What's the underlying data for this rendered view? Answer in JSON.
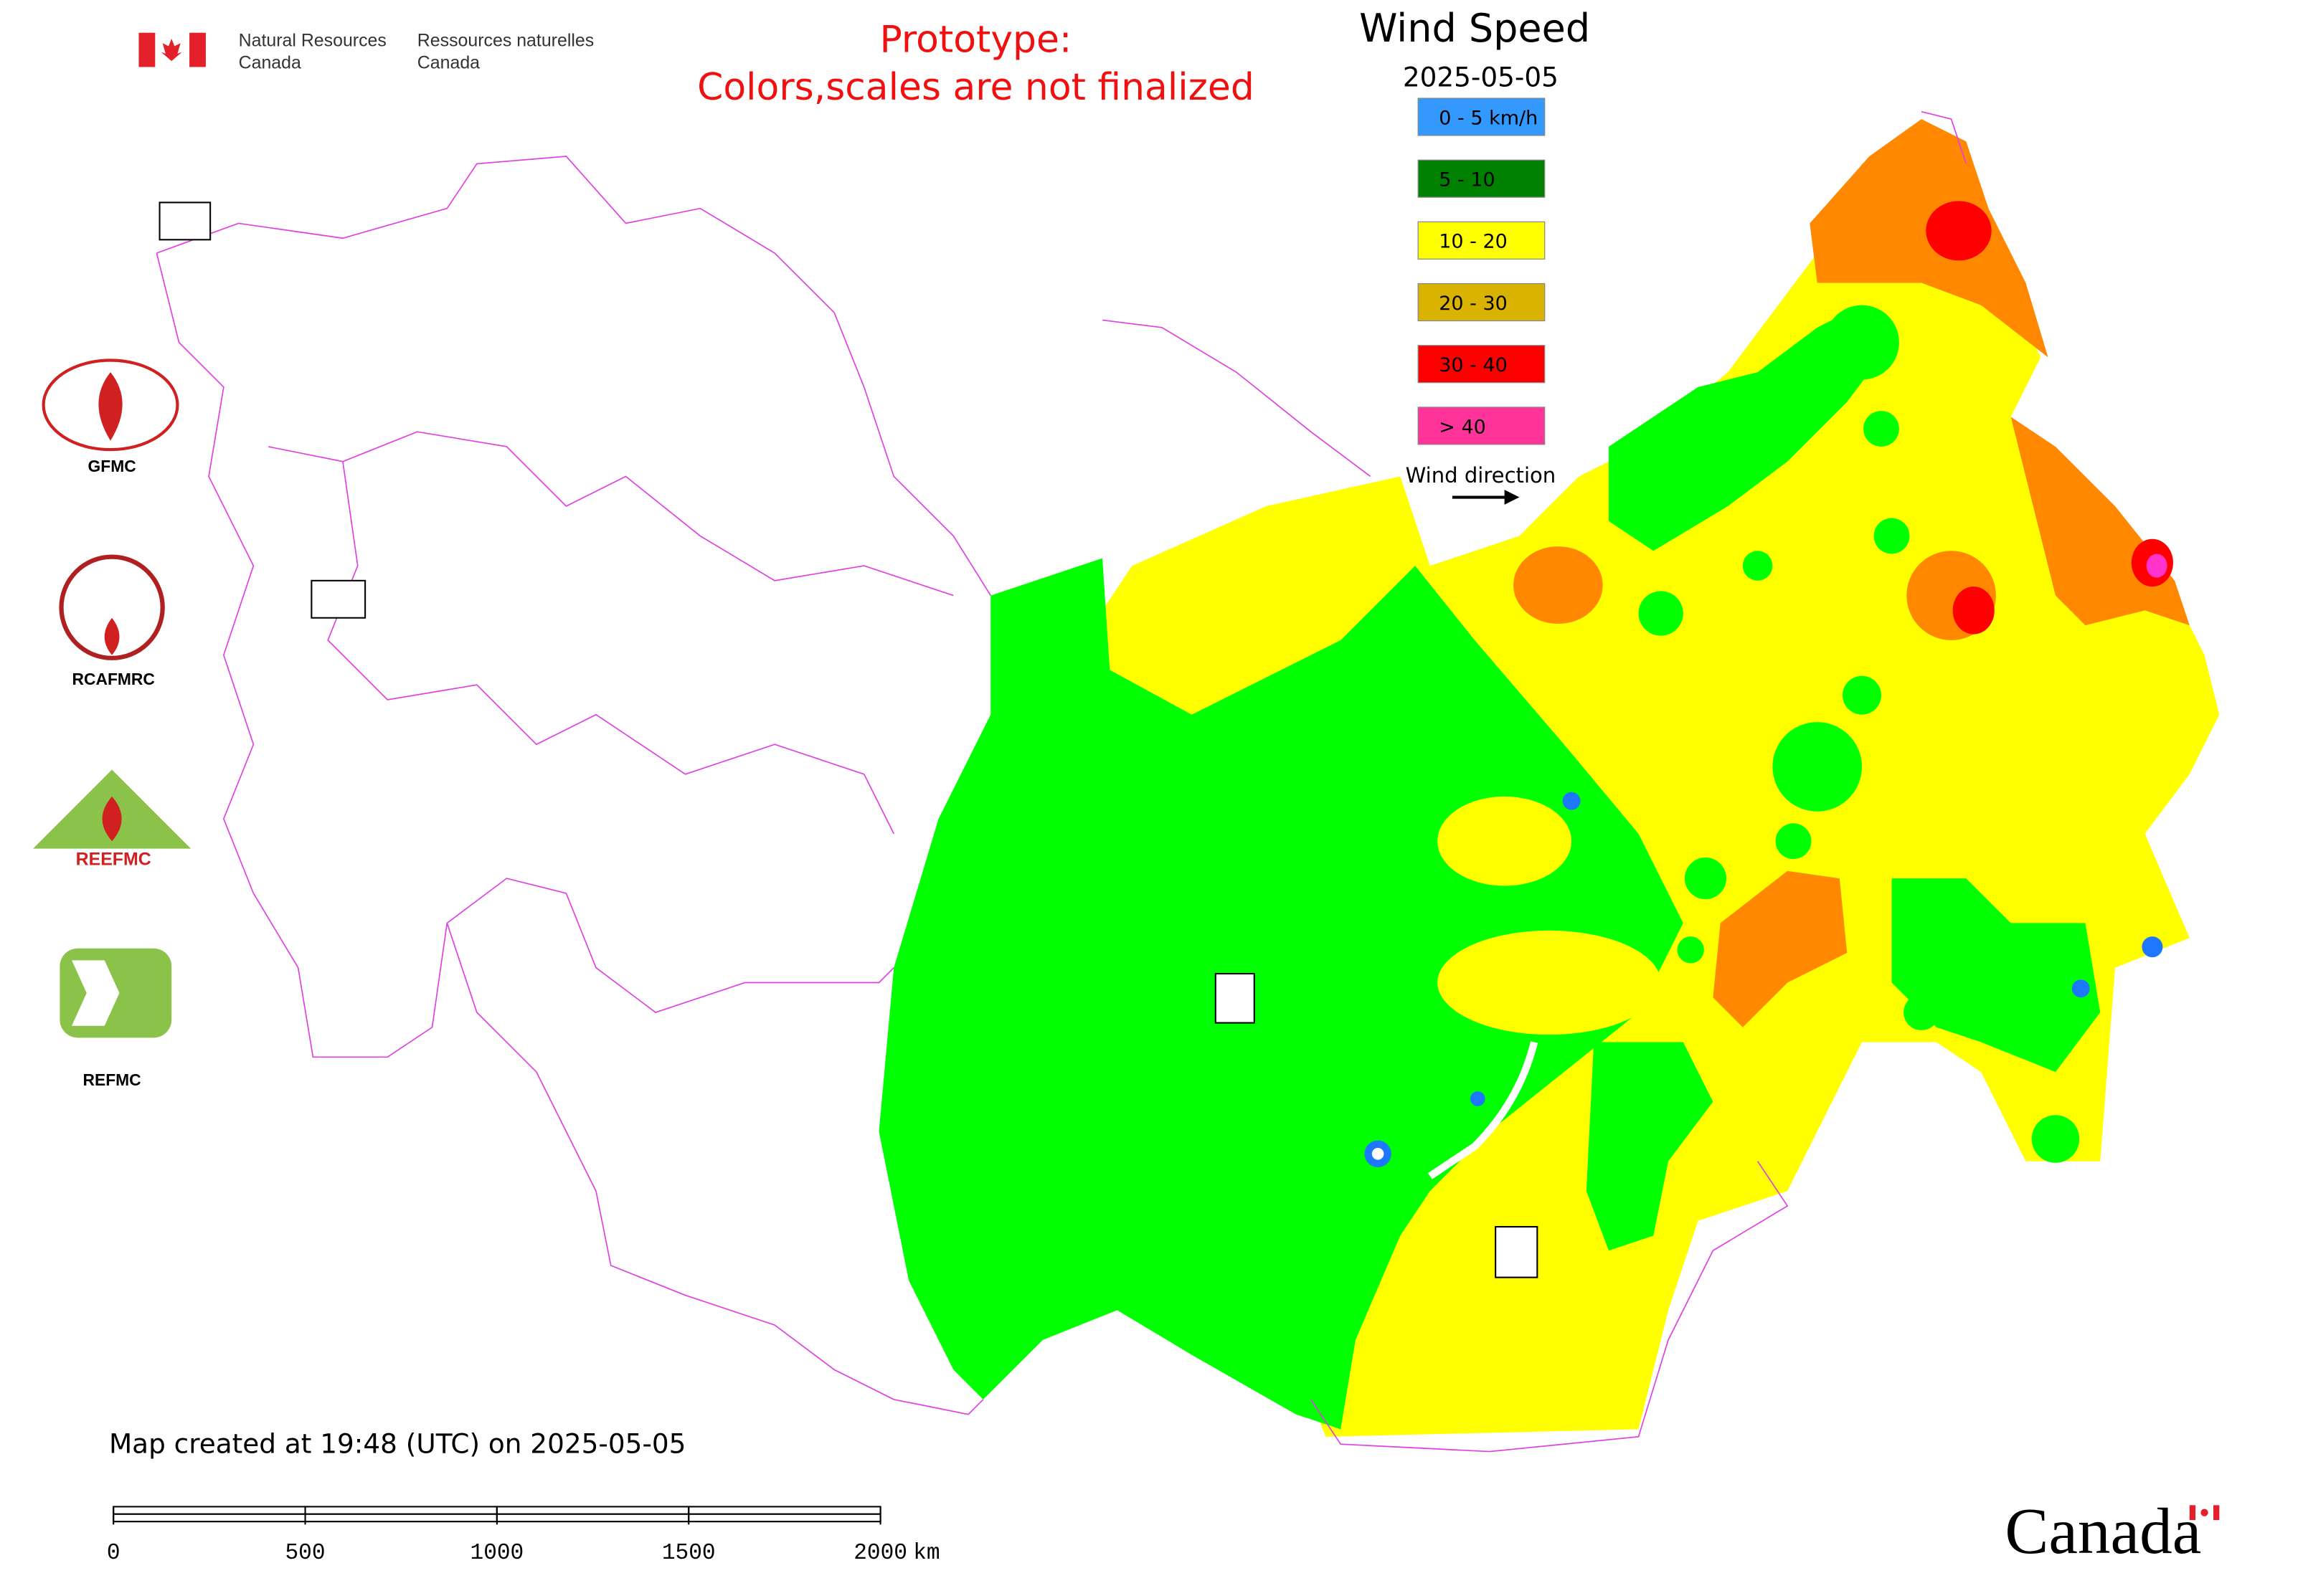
{
  "header": {
    "org_en_1": "Natural Resources",
    "org_en_2": "Canada",
    "org_fr_1": "Ressources naturelles",
    "org_fr_2": "Canada"
  },
  "notice": {
    "line1": "Prototype:",
    "line2": "Colors,scales are not finalized"
  },
  "title": "Wind Speed",
  "date": "2025-05-05",
  "legend": {
    "items": [
      {
        "label": "0 - 5 km/h",
        "color": "#3399ff"
      },
      {
        "label": "5 - 10",
        "color": "#008000"
      },
      {
        "label": "10 - 20",
        "color": "#ffff00"
      },
      {
        "label": "20 - 30",
        "color": "#d9b300"
      },
      {
        "label": "30 - 40",
        "color": "#ff0000"
      },
      {
        "label": "> 40",
        "color": "#ff3399"
      }
    ],
    "direction_label": "Wind direction"
  },
  "logos": [
    "GFMC",
    "RCAFMRC",
    "REEFMC",
    "REFMC"
  ],
  "footer": "Map created at 19:48 (UTC) on 2025-05-05",
  "scale": {
    "ticks": [
      0,
      500,
      1000,
      1500,
      2000
    ],
    "unit": "km"
  },
  "wordmark": "Canada"
}
